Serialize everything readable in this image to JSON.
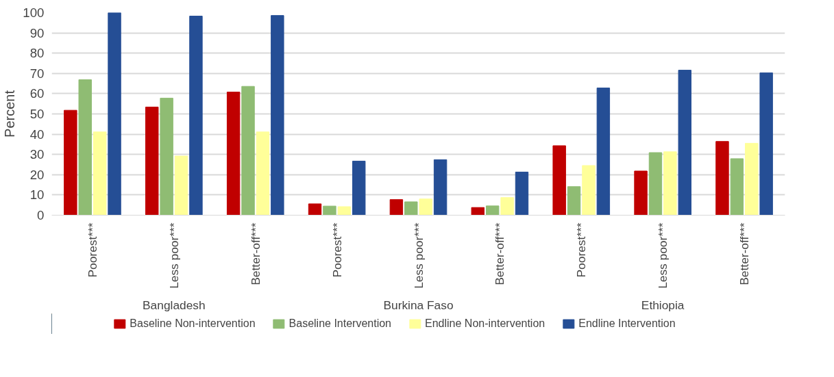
{
  "chart_data": {
    "type": "bar",
    "ylabel": "Percent",
    "categories": [
      "Poorest***",
      "Less poor***",
      "Better-off***",
      "Poorest***",
      "Less poor***",
      "Better-off***",
      "Poorest***",
      "Less poor***",
      "Better-off***"
    ],
    "series": [
      {
        "name": "Baseline Non-intervention",
        "color": "#c00000",
        "values": [
          51.8,
          53.4,
          60.8,
          5.6,
          7.7,
          3.8,
          34.3,
          21.8,
          36.4
        ]
      },
      {
        "name": "Baseline Intervention",
        "color": "#8fbc73",
        "values": [
          66.9,
          57.8,
          63.6,
          4.5,
          6.6,
          4.6,
          14.1,
          30.9,
          27.9
        ]
      },
      {
        "name": "Endline Non-intervention",
        "color": "#ffff99",
        "values": [
          41.1,
          29.2,
          41.1,
          4.2,
          8.0,
          8.7,
          24.5,
          31.3,
          35.5
        ]
      },
      {
        "name": "Endline Intervention",
        "color": "#254e95",
        "values": [
          100,
          98.3,
          98.6,
          26.7,
          27.4,
          21.3,
          62.8,
          71.6,
          70.3
        ]
      }
    ],
    "annotations": [
      "Bangladesh",
      "Burkina Faso",
      "Ethiopia"
    ],
    "ylim": [
      0,
      100
    ],
    "yticks": [
      0,
      10,
      20,
      30,
      40,
      50,
      60,
      70,
      80,
      90,
      100
    ],
    "grid": "y",
    "legend": "bottom"
  }
}
